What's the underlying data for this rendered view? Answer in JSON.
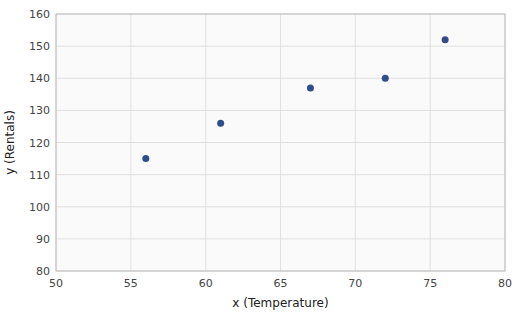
{
  "chart_data": {
    "type": "scatter",
    "x": [
      56,
      61,
      67,
      72,
      76
    ],
    "values": [
      115,
      126,
      137,
      140,
      152
    ],
    "xlabel": "x (Temperature)",
    "ylabel": "y (Rentals)",
    "xlim": [
      50,
      80
    ],
    "ylim": [
      80,
      160
    ],
    "xticks": [
      50,
      55,
      60,
      65,
      70,
      75,
      80
    ],
    "yticks": [
      80,
      90,
      100,
      110,
      120,
      130,
      140,
      150,
      160
    ],
    "grid": true,
    "color": "#2E4D8A"
  }
}
